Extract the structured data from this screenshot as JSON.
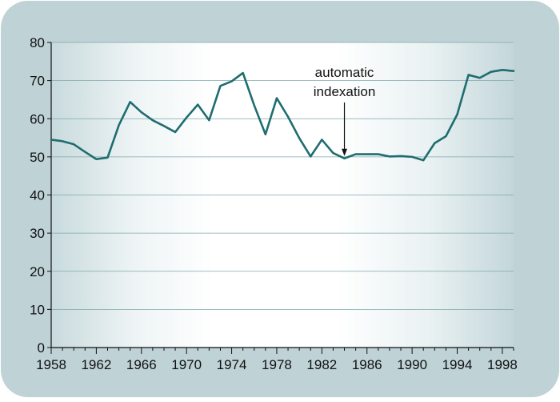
{
  "chart_data": {
    "type": "line",
    "title": "",
    "xlabel": "",
    "ylabel": "",
    "xlim": [
      1958,
      1999
    ],
    "ylim": [
      0,
      80
    ],
    "x_ticks": [
      "1958",
      "1962",
      "1966",
      "1970",
      "1974",
      "1978",
      "1982",
      "1986",
      "1990",
      "1994",
      "1998"
    ],
    "y_ticks": [
      "0",
      "10",
      "20",
      "30",
      "40",
      "50",
      "60",
      "70",
      "80"
    ],
    "grid": "horizontal",
    "legend": "none",
    "series": [
      {
        "x": [
          1958,
          1959,
          1960,
          1961,
          1962,
          1963,
          1964,
          1965,
          1966,
          1967,
          1968,
          1969,
          1970,
          1971,
          1972,
          1973,
          1974,
          1975,
          1976,
          1977,
          1978,
          1979,
          1980,
          1981,
          1982,
          1983,
          1984,
          1985,
          1986,
          1987,
          1988,
          1989,
          1990,
          1991,
          1992,
          1993,
          1994,
          1995,
          1996,
          1997,
          1998,
          1999
        ],
        "values": [
          54.5,
          54.1,
          53.3,
          51.3,
          49.4,
          49.8,
          58.3,
          64.4,
          61.7,
          59.6,
          58.1,
          56.5,
          60.3,
          63.7,
          59.6,
          68.6,
          69.8,
          72.0,
          63.5,
          55.9,
          65.4,
          60.5,
          54.9,
          50.1,
          54.5,
          51.0,
          49.6,
          50.7,
          50.7,
          50.7,
          50.1,
          50.2,
          50.0,
          49.1,
          53.6,
          55.4,
          61.1,
          71.5,
          70.7,
          72.3,
          72.8,
          72.5
        ],
        "color": "#1f6d70"
      }
    ],
    "annotation": {
      "lines": [
        "automatic",
        "indexation"
      ],
      "x": 1984,
      "y": 49.6
    }
  },
  "colors": {
    "frame_outer": "#bfd2d6",
    "plot_edge": "#c3d6da",
    "plot_center": "#ffffff",
    "line": "#1f6d70",
    "axis": "#111111",
    "grid": "#7fa8ab"
  }
}
